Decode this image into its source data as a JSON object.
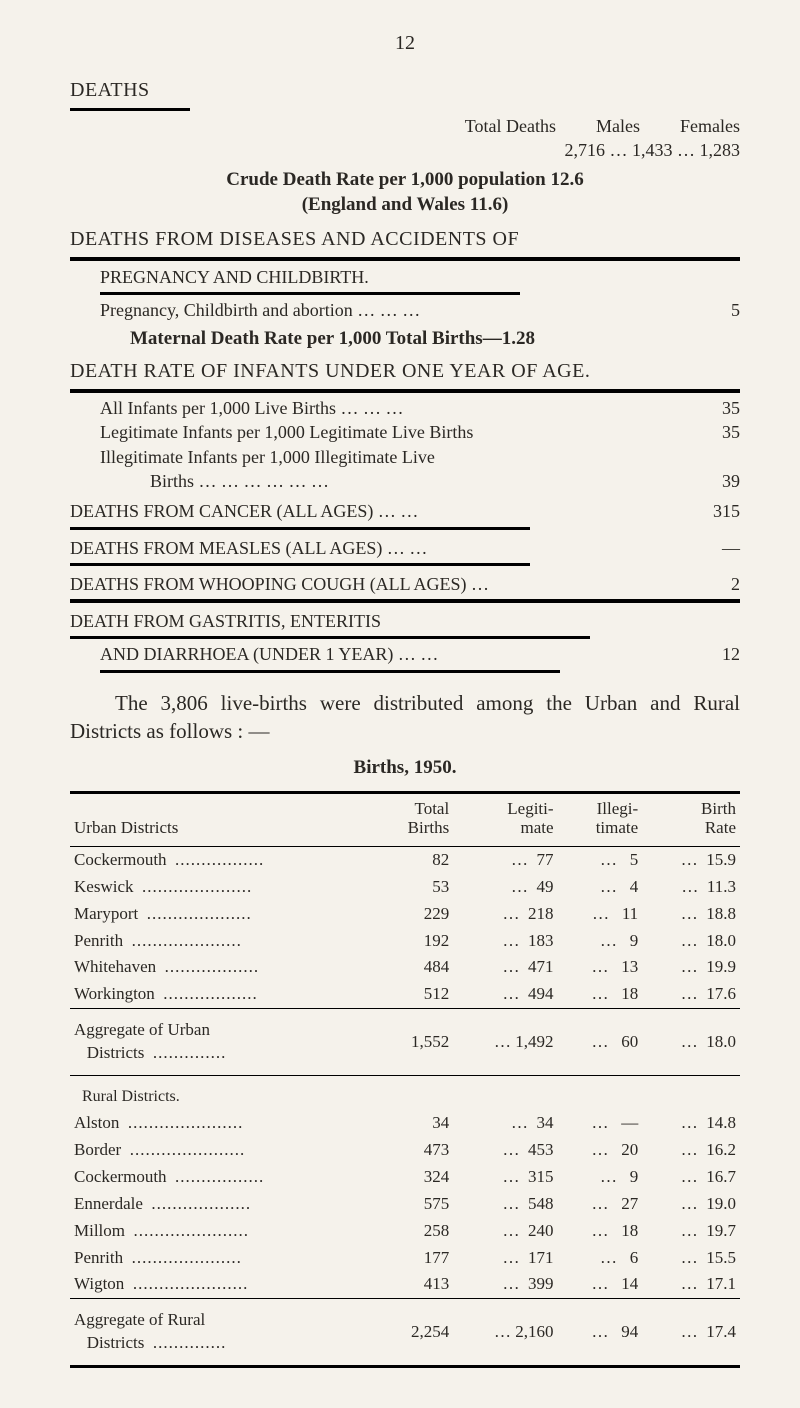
{
  "page_number": "12",
  "deaths_heading": "DEATHS",
  "total_deaths": {
    "label": "Total Deaths",
    "value": "2,716",
    "males_label": "Males",
    "males": "1,433",
    "females_label": "Females",
    "females": "1,283"
  },
  "crude_rate_line1": "Crude Death Rate per 1,000 population 12.6",
  "crude_rate_line2": "(England and Wales 11.6)",
  "diseases_heading": "DEATHS   FROM   DISEASES   AND   ACCIDENTS   OF",
  "pregnancy_heading": "PREGNANCY   AND   CHILDBIRTH.",
  "pregnancy_line": {
    "label": "Pregnancy, Childbirth and abortion …     …     …",
    "value": "5"
  },
  "maternal_rate": "Maternal Death Rate per 1,000 Total Births—1.28",
  "infant_rate_heading": "DEATH RATE OF INFANTS UNDER ONE YEAR OF AGE.",
  "infant_lines": [
    {
      "label": "All Infants per 1,000 Live Births     …     …     …",
      "value": "35"
    },
    {
      "label": "Legitimate Infants per 1,000 Legitimate Live Births",
      "value": "35"
    },
    {
      "label": "Illegitimate  Infants  per  1,000  Illegitimate  Live",
      "value": ""
    },
    {
      "label": "Births               …     …     …     …     …     …",
      "value": "39",
      "indent": true
    }
  ],
  "cancer": {
    "label": "DEATHS FROM CANCER (ALL AGES)          …     …",
    "value": "315"
  },
  "measles": {
    "label": "DEATHS FROM MEASLES (ALL AGES)          …     …",
    "value": "—"
  },
  "whooping": {
    "label": "DEATHS FROM WHOOPING COUGH (ALL AGES) …",
    "value": "2"
  },
  "gastritis_line1": "DEATH   FROM   GASTRITIS,   ENTERITIS",
  "gastritis_line2": {
    "label": "AND  DIARRHOEA  (UNDER  1  YEAR)     …     …",
    "value": "12"
  },
  "distribution_para": "The 3,806 live-births were distributed among the Urban and Rural Districts as follows : —",
  "births_1950_title": "Births, 1950.",
  "table": {
    "headers": {
      "urban": "Urban Districts",
      "total_births_1": "Total",
      "total_births_2": "Births",
      "legit_1": "Legiti-",
      "legit_2": "mate",
      "illegit_1": "Illegi-",
      "illegit_2": "timate",
      "rate_1": "Birth",
      "rate_2": "Rate"
    },
    "urban_rows": [
      {
        "name": "Cockermouth",
        "total": "82",
        "legit": "77",
        "illegit": "5",
        "rate": "15.9"
      },
      {
        "name": "Keswick",
        "total": "53",
        "legit": "49",
        "illegit": "4",
        "rate": "11.3"
      },
      {
        "name": "Maryport",
        "total": "229",
        "legit": "218",
        "illegit": "11",
        "rate": "18.8"
      },
      {
        "name": "Penrith",
        "total": "192",
        "legit": "183",
        "illegit": "9",
        "rate": "18.0"
      },
      {
        "name": "Whitehaven",
        "total": "484",
        "legit": "471",
        "illegit": "13",
        "rate": "19.9"
      },
      {
        "name": "Workington",
        "total": "512",
        "legit": "494",
        "illegit": "18",
        "rate": "17.6"
      }
    ],
    "urban_agg": {
      "name1": "Aggregate of Urban",
      "name2": "Districts",
      "total": "1,552",
      "legit": "1,492",
      "illegit": "60",
      "rate": "18.0"
    },
    "rural_heading": "Rural Districts.",
    "rural_rows": [
      {
        "name": "Alston",
        "total": "34",
        "legit": "34",
        "illegit": "—",
        "rate": "14.8"
      },
      {
        "name": "Border",
        "total": "473",
        "legit": "453",
        "illegit": "20",
        "rate": "16.2"
      },
      {
        "name": "Cockermouth",
        "total": "324",
        "legit": "315",
        "illegit": "9",
        "rate": "16.7"
      },
      {
        "name": "Ennerdale",
        "total": "575",
        "legit": "548",
        "illegit": "27",
        "rate": "19.0"
      },
      {
        "name": "Millom",
        "total": "258",
        "legit": "240",
        "illegit": "18",
        "rate": "19.7"
      },
      {
        "name": "Penrith",
        "total": "177",
        "legit": "171",
        "illegit": "6",
        "rate": "15.5"
      },
      {
        "name": "Wigton",
        "total": "413",
        "legit": "399",
        "illegit": "14",
        "rate": "17.1"
      }
    ],
    "rural_agg": {
      "name1": "Aggregate of Rural",
      "name2": "Districts",
      "total": "2,254",
      "legit": "2,160",
      "illegit": "94",
      "rate": "17.4"
    }
  }
}
